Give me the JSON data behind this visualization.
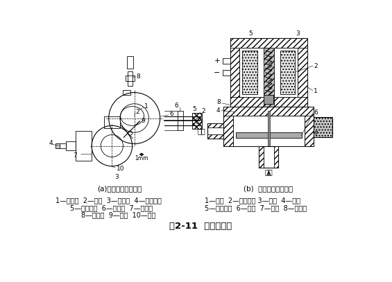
{
  "bg_color": "#ffffff",
  "title": "图2-11  气流控制阀",
  "subtitle_a": "(a)机械式气流控制阀",
  "subtitle_b": "(b)  电磁式气流控制阀",
  "legend_left_line1": "1—主凸轮  2—转子  3—进气管  4—调节螺丝",
  "legend_left_line2": "5—调节凸轮  6—凸轮轴  7—阀门座",
  "legend_left_line3": "8—出气管  9—摆杆  10—顶杆",
  "legend_right_line1": "1—阀体  2—电磁线圈 3—衔铁  4—阀门",
  "legend_right_line2": "5—复位弹簧  6—垫片  7—外壳  8—密封圈"
}
